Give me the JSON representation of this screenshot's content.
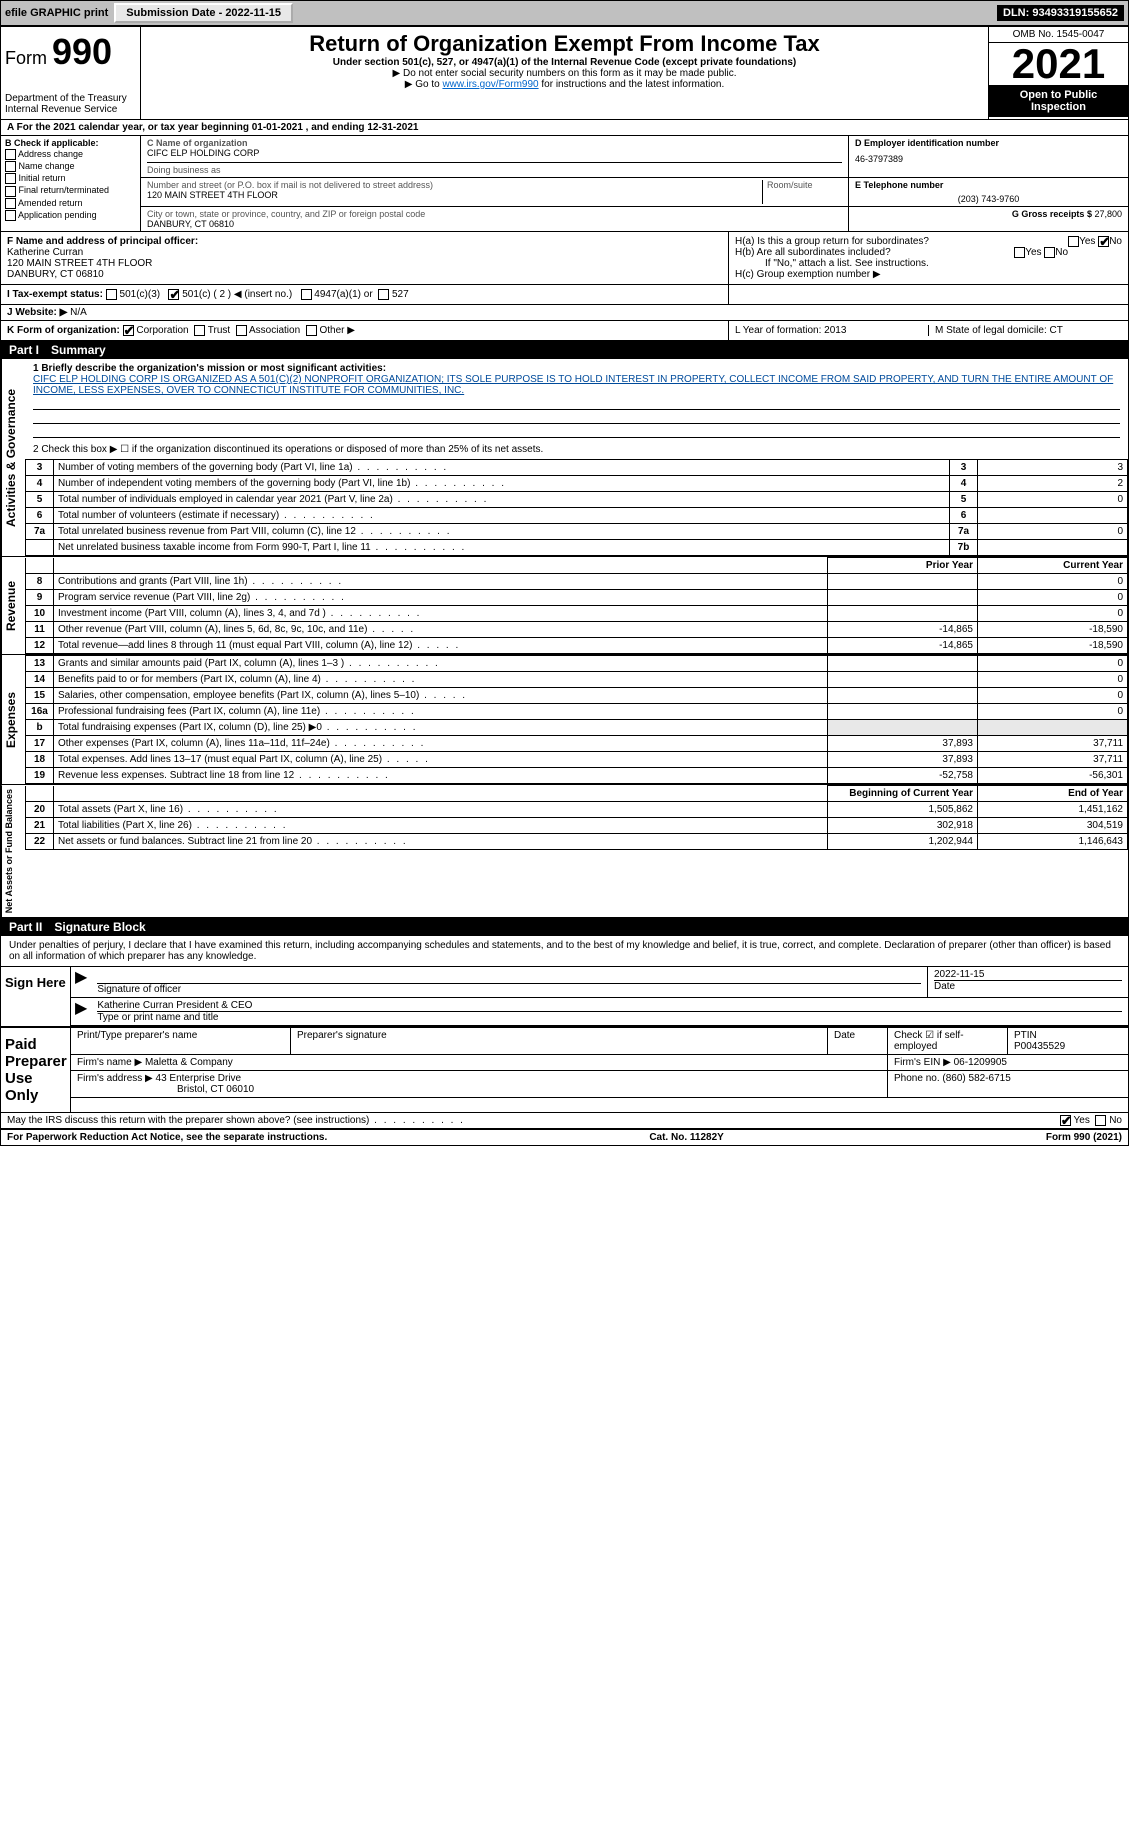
{
  "topbar": {
    "efile": "efile GRAPHIC print",
    "subdate_label": "Submission Date - 2022-11-15",
    "dln": "DLN: 93493319155652"
  },
  "header": {
    "form_word": "Form",
    "form_num": "990",
    "title": "Return of Organization Exempt From Income Tax",
    "subtitle": "Under section 501(c), 527, or 4947(a)(1) of the Internal Revenue Code (except private foundations)",
    "note1": "▶ Do not enter social security numbers on this form as it may be made public.",
    "note2": "▶ Go to www.irs.gov/Form990 for instructions and the latest information.",
    "dept1": "Department of the Treasury",
    "dept2": "Internal Revenue Service",
    "omb": "OMB No. 1545-0047",
    "year": "2021",
    "public": "Open to Public Inspection",
    "link": "www.irs.gov/Form990"
  },
  "row_a": {
    "text": "A For the 2021 calendar year, or tax year beginning 01-01-2021    , and ending 12-31-2021"
  },
  "col_b": {
    "label": "B Check if applicable:",
    "items": [
      "Address change",
      "Name change",
      "Initial return",
      "Final return/terminated",
      "Amended return",
      "Application pending"
    ]
  },
  "col_c": {
    "name_label": "C Name of organization",
    "name": "CIFC ELP HOLDING CORP",
    "dba_label": "Doing business as",
    "dba": "",
    "street_label": "Number and street (or P.O. box if mail is not delivered to street address)",
    "room_label": "Room/suite",
    "street": "120 MAIN STREET 4TH FLOOR",
    "city_label": "City or town, state or province, country, and ZIP or foreign postal code",
    "city": "DANBURY, CT  06810"
  },
  "col_d": {
    "ein_label": "D Employer identification number",
    "ein": "46-3797389",
    "phone_label": "E Telephone number",
    "phone": "(203) 743-9760",
    "gross_label": "G Gross receipts $",
    "gross": "27,800"
  },
  "officer": {
    "f_label": "F Name and address of principal officer:",
    "name": "Katherine Curran",
    "addr1": "120 MAIN STREET 4TH FLOOR",
    "addr2": "DANBURY, CT  06810"
  },
  "h": {
    "ha": "H(a)  Is this a group return for subordinates?",
    "hb": "H(b)  Are all subordinates included?",
    "hb_note": "If \"No,\" attach a list. See instructions.",
    "hc": "H(c)  Group exemption number ▶",
    "yes": "Yes",
    "no": "No"
  },
  "tax_status": {
    "i": "I  Tax-exempt status:",
    "c3": "501(c)(3)",
    "c": "501(c) ( 2 ) ◀ (insert no.)",
    "a1": "4947(a)(1) or",
    "s527": "527"
  },
  "website": {
    "j": "J  Website: ▶",
    "val": "N/A"
  },
  "k": {
    "label": "K Form of organization:",
    "corp": "Corporation",
    "trust": "Trust",
    "assoc": "Association",
    "other": "Other ▶"
  },
  "lm": {
    "l": "L Year of formation: 2013",
    "m": "M State of legal domicile: CT"
  },
  "part1": {
    "hdr": "Part I",
    "title": "Summary",
    "mission_label": "1  Briefly describe the organization's mission or most significant activities:",
    "mission": "CIFC ELP HOLDING CORP IS ORGANIZED AS A 501(C)(2) NONPROFIT ORGANIZATION; ITS SOLE PURPOSE IS TO HOLD INTEREST IN PROPERTY, COLLECT INCOME FROM SAID PROPERTY, AND TURN THE ENTIRE AMOUNT OF INCOME, LESS EXPENSES, OVER TO CONNECTICUT INSTITUTE FOR COMMUNITIES, INC.",
    "line2": "2  Check this box ▶ ☐ if the organization discontinued its operations or disposed of more than 25% of its net assets.",
    "sideA": "Activities & Governance",
    "sideR": "Revenue",
    "sideE": "Expenses",
    "sideN": "Net Assets or Fund Balances",
    "rows_ag": [
      {
        "n": "3",
        "d": "Number of voting members of the governing body (Part VI, line 1a)",
        "c": "3",
        "v": "3"
      },
      {
        "n": "4",
        "d": "Number of independent voting members of the governing body (Part VI, line 1b)",
        "c": "4",
        "v": "2"
      },
      {
        "n": "5",
        "d": "Total number of individuals employed in calendar year 2021 (Part V, line 2a)",
        "c": "5",
        "v": "0"
      },
      {
        "n": "6",
        "d": "Total number of volunteers (estimate if necessary)",
        "c": "6",
        "v": ""
      },
      {
        "n": "7a",
        "d": "Total unrelated business revenue from Part VIII, column (C), line 12",
        "c": "7a",
        "v": "0"
      },
      {
        "n": "",
        "d": "Net unrelated business taxable income from Form 990-T, Part I, line 11",
        "c": "7b",
        "v": ""
      }
    ],
    "col_prior": "Prior Year",
    "col_curr": "Current Year",
    "rows_rev": [
      {
        "n": "8",
        "d": "Contributions and grants (Part VIII, line 1h)",
        "p": "",
        "c": "0"
      },
      {
        "n": "9",
        "d": "Program service revenue (Part VIII, line 2g)",
        "p": "",
        "c": "0"
      },
      {
        "n": "10",
        "d": "Investment income (Part VIII, column (A), lines 3, 4, and 7d )",
        "p": "",
        "c": "0"
      },
      {
        "n": "11",
        "d": "Other revenue (Part VIII, column (A), lines 5, 6d, 8c, 9c, 10c, and 11e)",
        "p": "-14,865",
        "c": "-18,590"
      },
      {
        "n": "12",
        "d": "Total revenue—add lines 8 through 11 (must equal Part VIII, column (A), line 12)",
        "p": "-14,865",
        "c": "-18,590"
      }
    ],
    "rows_exp": [
      {
        "n": "13",
        "d": "Grants and similar amounts paid (Part IX, column (A), lines 1–3 )",
        "p": "",
        "c": "0"
      },
      {
        "n": "14",
        "d": "Benefits paid to or for members (Part IX, column (A), line 4)",
        "p": "",
        "c": "0"
      },
      {
        "n": "15",
        "d": "Salaries, other compensation, employee benefits (Part IX, column (A), lines 5–10)",
        "p": "",
        "c": "0"
      },
      {
        "n": "16a",
        "d": "Professional fundraising fees (Part IX, column (A), line 11e)",
        "p": "",
        "c": "0"
      },
      {
        "n": "b",
        "d": "Total fundraising expenses (Part IX, column (D), line 25) ▶0",
        "p": "—shade—",
        "c": "—shade—"
      },
      {
        "n": "17",
        "d": "Other expenses (Part IX, column (A), lines 11a–11d, 11f–24e)",
        "p": "37,893",
        "c": "37,711"
      },
      {
        "n": "18",
        "d": "Total expenses. Add lines 13–17 (must equal Part IX, column (A), line 25)",
        "p": "37,893",
        "c": "37,711"
      },
      {
        "n": "19",
        "d": "Revenue less expenses. Subtract line 18 from line 12",
        "p": "-52,758",
        "c": "-56,301"
      }
    ],
    "col_beg": "Beginning of Current Year",
    "col_end": "End of Year",
    "rows_net": [
      {
        "n": "20",
        "d": "Total assets (Part X, line 16)",
        "p": "1,505,862",
        "c": "1,451,162"
      },
      {
        "n": "21",
        "d": "Total liabilities (Part X, line 26)",
        "p": "302,918",
        "c": "304,519"
      },
      {
        "n": "22",
        "d": "Net assets or fund balances. Subtract line 21 from line 20",
        "p": "1,202,944",
        "c": "1,146,643"
      }
    ]
  },
  "part2": {
    "hdr": "Part II",
    "title": "Signature Block",
    "decl": "Under penalties of perjury, I declare that I have examined this return, including accompanying schedules and statements, and to the best of my knowledge and belief, it is true, correct, and complete. Declaration of preparer (other than officer) is based on all information of which preparer has any knowledge.",
    "sign_here": "Sign Here",
    "sig_officer": "Signature of officer",
    "date": "Date",
    "date_val": "2022-11-15",
    "name_title": "Katherine Curran  President & CEO",
    "type_name": "Type or print name and title",
    "paid": "Paid Preparer Use Only",
    "prep_name_lbl": "Print/Type preparer's name",
    "prep_sig_lbl": "Preparer's signature",
    "date_lbl": "Date",
    "check_self": "Check ☑ if self-employed",
    "ptin_lbl": "PTIN",
    "ptin": "P00435529",
    "firm_name_lbl": "Firm's name    ▶",
    "firm_name": "Maletta & Company",
    "firm_ein_lbl": "Firm's EIN ▶",
    "firm_ein": "06-1209905",
    "firm_addr_lbl": "Firm's address ▶",
    "firm_addr1": "43 Enterprise Drive",
    "firm_addr2": "Bristol, CT  06010",
    "firm_phone_lbl": "Phone no.",
    "firm_phone": "(860) 582-6715",
    "may_irs": "May the IRS discuss this return with the preparer shown above? (see instructions)",
    "yes": "Yes",
    "no": "No"
  },
  "footer": {
    "pra": "For Paperwork Reduction Act Notice, see the separate instructions.",
    "cat": "Cat. No. 11282Y",
    "form": "Form 990 (2021)"
  }
}
